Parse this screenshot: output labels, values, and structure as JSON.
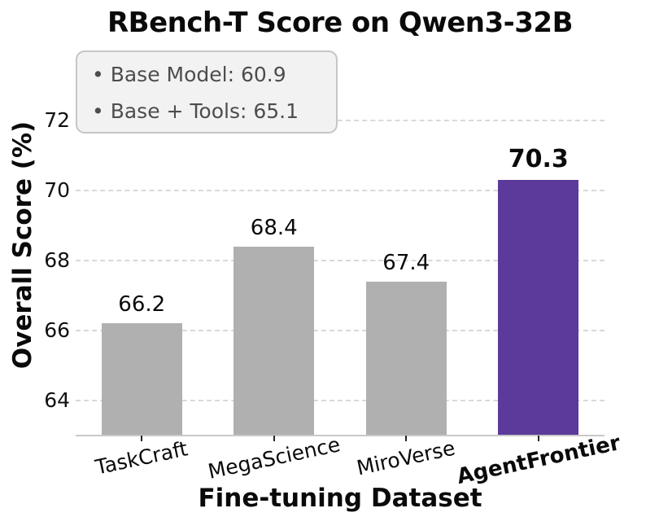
{
  "chart_data": {
    "type": "bar",
    "title": "RBench-T Score on Qwen3-32B",
    "xlabel": "Fine-tuning Dataset",
    "ylabel": "Overall Score (%)",
    "categories": [
      "TaskCraft",
      "MegaScience",
      "MiroVerse",
      "AgentFrontier"
    ],
    "values": [
      66.2,
      68.4,
      67.4,
      70.3
    ],
    "value_labels": [
      "66.2",
      "68.4",
      "67.4",
      "70.3"
    ],
    "highlight_index": 3,
    "yticks": [
      64,
      66,
      68,
      70,
      72
    ],
    "ylim": [
      63,
      72.7
    ],
    "grid": "horizontal-dashed",
    "legend_position": "none",
    "colors": {
      "bar": "#b0b0b0",
      "highlight": "#5b3a9c",
      "grid": "#d9d9d9",
      "axis_line": "#c9c9c9",
      "text": "#0a0a0a",
      "annotation_text": "#4d4d4d",
      "annotation_bg": "#f2f2f2",
      "annotation_border": "#c6c6c6"
    },
    "annotation": {
      "lines": [
        "• Base Model: 60.9",
        "• Base + Tools: 65.1"
      ],
      "base_model_score": 60.9,
      "base_plus_tools_score": 65.1
    }
  }
}
